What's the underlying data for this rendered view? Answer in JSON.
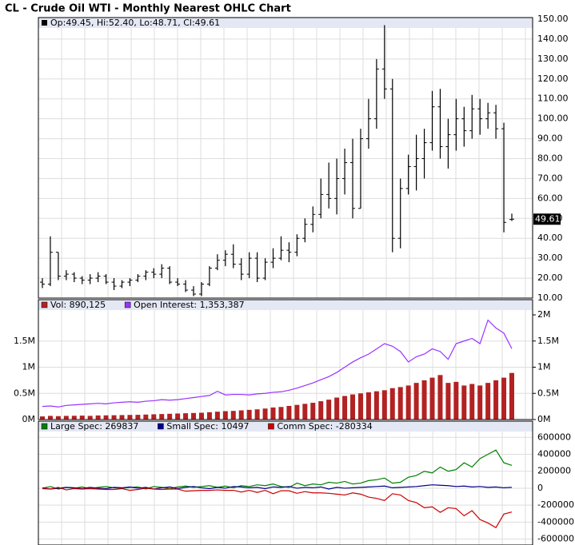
{
  "chart_data": [
    {
      "type": "ohlc",
      "title": "CL - Crude Oil WTI - Monthly Nearest OHLC Chart",
      "header": "Op:49.45, Hi:52.40, Lo:48.71, Cl:49.61",
      "color": "#000000",
      "open": [
        18,
        17,
        33,
        21,
        22,
        20,
        19,
        20,
        21,
        18,
        16,
        18,
        19,
        21,
        23,
        22,
        25,
        18,
        17,
        14,
        12,
        17,
        25,
        29,
        32,
        27,
        22,
        30,
        20,
        28,
        30,
        34,
        33,
        40,
        47,
        52,
        62,
        60,
        70,
        78,
        55,
        90,
        100,
        125,
        115,
        40,
        65,
        76,
        80,
        88,
        106,
        86,
        92,
        100,
        94,
        105,
        100,
        103,
        95,
        49.45
      ],
      "high": [
        20,
        41,
        33,
        24,
        23,
        21,
        22,
        23,
        22,
        20,
        19,
        20,
        22,
        24,
        25,
        27,
        26,
        20,
        19,
        16,
        18,
        26,
        32,
        34,
        37,
        30,
        33,
        33,
        30,
        35,
        41,
        38,
        42,
        50,
        56,
        70,
        78,
        80,
        85,
        90,
        95,
        110,
        130,
        147,
        120,
        70,
        82,
        92,
        95,
        114,
        115,
        100,
        110,
        106,
        112,
        110,
        108,
        107,
        98,
        52.4
      ],
      "low": [
        15,
        16,
        19,
        19,
        18,
        17,
        17,
        18,
        17,
        14,
        15,
        16,
        18,
        19,
        20,
        20,
        17,
        16,
        13,
        11,
        11,
        16,
        24,
        26,
        25,
        19,
        20,
        18,
        19,
        25,
        29,
        28,
        31,
        38,
        43,
        50,
        55,
        52,
        62,
        50,
        55,
        85,
        95,
        110,
        33,
        35,
        62,
        64,
        70,
        84,
        80,
        75,
        84,
        86,
        90,
        92,
        95,
        90,
        43,
        48.71
      ],
      "close": [
        17,
        33,
        21,
        22,
        20,
        19,
        20,
        21,
        18,
        16,
        18,
        19,
        21,
        23,
        22,
        25,
        18,
        17,
        14,
        12,
        17,
        25,
        29,
        32,
        27,
        22,
        30,
        20,
        28,
        30,
        34,
        33,
        40,
        47,
        52,
        62,
        60,
        70,
        78,
        55,
        90,
        100,
        125,
        115,
        40,
        65,
        76,
        80,
        88,
        106,
        86,
        92,
        100,
        94,
        105,
        100,
        103,
        95,
        48,
        49.61
      ],
      "ylim": [
        10,
        150
      ],
      "yticks": [
        {
          "value": 10,
          "label": "10.00"
        },
        {
          "value": 20,
          "label": "20.00"
        },
        {
          "value": 30,
          "label": "30.00"
        },
        {
          "value": 40,
          "label": "40.00"
        },
        {
          "value": 50,
          "label": "50.00"
        },
        {
          "value": 60,
          "label": "60.00"
        },
        {
          "value": 70,
          "label": "70.00"
        },
        {
          "value": 80,
          "label": "80.00"
        },
        {
          "value": 90,
          "label": "90.00"
        },
        {
          "value": 100,
          "label": "100.00"
        },
        {
          "value": 110,
          "label": "110.00"
        },
        {
          "value": 120,
          "label": "120.00"
        },
        {
          "value": 130,
          "label": "130.00"
        },
        {
          "value": 140,
          "label": "140.00"
        },
        {
          "value": 150,
          "label": "150.00"
        }
      ],
      "grid": true
    },
    {
      "type": "bar",
      "series": [
        {
          "name": "Vol: 890,125",
          "color": "#b22222",
          "values": [
            60000,
            70000,
            65000,
            70000,
            72000,
            75000,
            70000,
            78000,
            80000,
            82000,
            85000,
            88000,
            90000,
            95000,
            100000,
            105000,
            110000,
            115000,
            120000,
            125000,
            130000,
            140000,
            150000,
            160000,
            165000,
            175000,
            185000,
            195000,
            210000,
            230000,
            240000,
            260000,
            280000,
            300000,
            320000,
            350000,
            380000,
            420000,
            450000,
            480000,
            500000,
            520000,
            540000,
            560000,
            600000,
            620000,
            650000,
            700000,
            750000,
            800000,
            850000,
            700000,
            720000,
            650000,
            680000,
            650000,
            700000,
            750000,
            800000,
            890125
          ]
        },
        {
          "name": "Open Interest: 1,353,387",
          "color": "#9933ff",
          "axis": "y2",
          "values": [
            250000,
            260000,
            240000,
            270000,
            280000,
            290000,
            300000,
            310000,
            300000,
            320000,
            330000,
            340000,
            330000,
            350000,
            360000,
            380000,
            370000,
            380000,
            400000,
            420000,
            440000,
            460000,
            540000,
            470000,
            480000,
            480000,
            470000,
            490000,
            500000,
            520000,
            530000,
            560000,
            600000,
            650000,
            700000,
            760000,
            820000,
            900000,
            1000000,
            1100000,
            1180000,
            1250000,
            1350000,
            1450000,
            1400000,
            1300000,
            1100000,
            1200000,
            1250000,
            1350000,
            1300000,
            1150000,
            1450000,
            1500000,
            1550000,
            1450000,
            1900000,
            1750000,
            1650000,
            1353387
          ]
        }
      ],
      "ylim": [
        0,
        2000000
      ],
      "yticks": [
        {
          "value": 0,
          "label": "0M"
        },
        {
          "value": 500000,
          "label": "0.5M"
        },
        {
          "value": 1000000,
          "label": "1M"
        },
        {
          "value": 1500000,
          "label": "1.5M"
        }
      ],
      "y2lim": [
        0,
        2000000
      ],
      "y2ticks": [
        {
          "value": 0,
          "label": "0M"
        },
        {
          "value": 500000,
          "label": "0.5M"
        },
        {
          "value": 1000000,
          "label": "1M"
        },
        {
          "value": 1500000,
          "label": "1.5M"
        },
        {
          "value": 2000000,
          "label": "2M"
        }
      ],
      "grid": true
    },
    {
      "type": "line",
      "series": [
        {
          "name": "Large Spec: 269837",
          "color": "#008000",
          "values": [
            0,
            20000,
            -10000,
            10000,
            0,
            15000,
            -5000,
            10000,
            20000,
            5000,
            0,
            10000,
            15000,
            -10000,
            20000,
            10000,
            -5000,
            15000,
            25000,
            10000,
            20000,
            30000,
            10000,
            25000,
            5000,
            30000,
            20000,
            40000,
            30000,
            50000,
            20000,
            10000,
            60000,
            30000,
            50000,
            40000,
            70000,
            60000,
            80000,
            50000,
            60000,
            90000,
            100000,
            120000,
            60000,
            70000,
            130000,
            150000,
            200000,
            180000,
            250000,
            200000,
            220000,
            300000,
            250000,
            350000,
            400000,
            450000,
            300000,
            269837
          ]
        },
        {
          "name": "Small Spec: 10497",
          "color": "#00008b",
          "values": [
            5000,
            -10000,
            0,
            10000,
            5000,
            -5000,
            10000,
            0,
            -5000,
            10000,
            5000,
            15000,
            0,
            10000,
            -10000,
            5000,
            15000,
            -5000,
            10000,
            20000,
            5000,
            -5000,
            10000,
            0,
            20000,
            15000,
            5000,
            10000,
            -5000,
            15000,
            10000,
            20000,
            0,
            10000,
            5000,
            15000,
            -10000,
            10000,
            0,
            5000,
            10000,
            15000,
            20000,
            25000,
            5000,
            10000,
            15000,
            20000,
            30000,
            40000,
            35000,
            30000,
            20000,
            25000,
            15000,
            20000,
            10000,
            15000,
            5000,
            10497
          ]
        },
        {
          "name": "Comm Spec: -280334",
          "color": "#cc0000",
          "values": [
            -5000,
            -10000,
            10000,
            -20000,
            -5000,
            -10000,
            -5000,
            -10000,
            -15000,
            -15000,
            -5000,
            -25000,
            -15000,
            0,
            -10000,
            -15000,
            -10000,
            -10000,
            -35000,
            -30000,
            -25000,
            -25000,
            -20000,
            -25000,
            -25000,
            -45000,
            -25000,
            -50000,
            -25000,
            -65000,
            -30000,
            -30000,
            -60000,
            -40000,
            -55000,
            -55000,
            -60000,
            -70000,
            -80000,
            -55000,
            -70000,
            -105000,
            -120000,
            -145000,
            -65000,
            -80000,
            -145000,
            -170000,
            -230000,
            -220000,
            -285000,
            -230000,
            -240000,
            -325000,
            -265000,
            -370000,
            -410000,
            -465000,
            -305000,
            -280334
          ]
        }
      ],
      "ylim": [
        -670000,
        650000
      ],
      "yticks": [
        -600000,
        -400000,
        -200000,
        0,
        200000,
        400000,
        600000
      ],
      "grid": true
    }
  ]
}
